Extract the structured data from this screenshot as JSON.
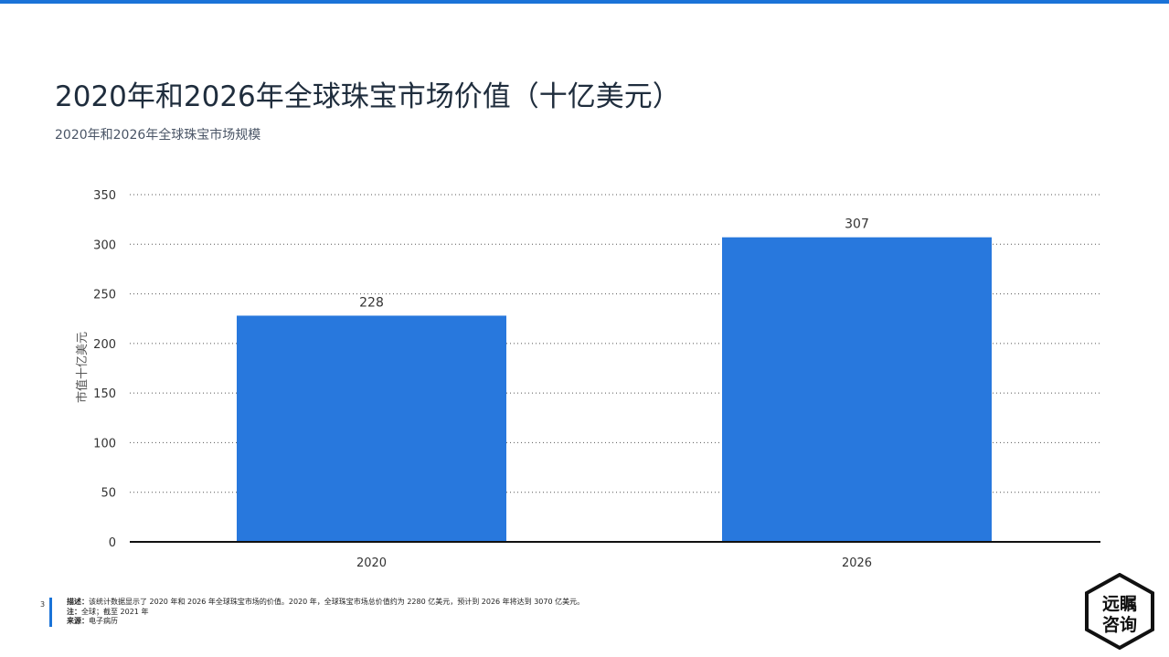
{
  "page": {
    "title": "2020年和2026年全球珠宝市场价值（十亿美元）",
    "subtitle": "2020年和2026年全球珠宝市场规模",
    "page_number": "3",
    "accent_color": "#1a73d8",
    "logo_text": [
      "远瞩",
      "咨询"
    ]
  },
  "footer": {
    "description_label": "描述：",
    "description": "该统计数据显示了 2020 年和 2026 年全球珠宝市场的价值。2020 年，全球珠宝市场总价值约为 2280 亿美元，预计到 2026 年将达到 3070 亿美元。",
    "note_label": "注：",
    "note": "全球；截至 2021 年",
    "source_label": "来源：",
    "source": "电子病历"
  },
  "chart_data": {
    "type": "bar",
    "title": "2020年和2026年全球珠宝市场价值（十亿美元）",
    "categories": [
      "2020",
      "2026"
    ],
    "values": [
      228,
      307
    ],
    "ylabel": "市值十亿美元",
    "xlabel": "",
    "ylim": [
      0,
      350
    ],
    "yticks": [
      0,
      50,
      100,
      150,
      200,
      250,
      300,
      350
    ],
    "grid": true,
    "bar_color": "#2878dd",
    "data_labels": [
      "228",
      "307"
    ]
  }
}
